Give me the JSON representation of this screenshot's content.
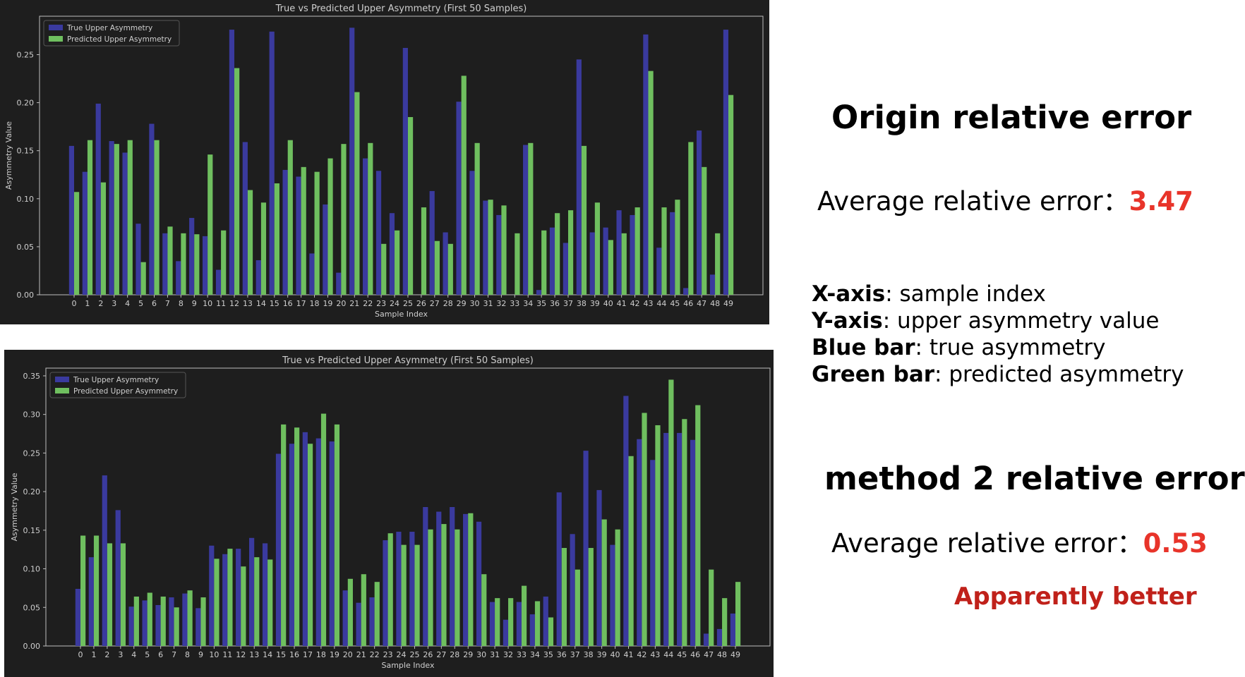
{
  "chart_data": [
    {
      "type": "bar",
      "title": "True vs Predicted Upper Asymmetry (First 50 Samples)",
      "xlabel": "Sample Index",
      "ylabel": "Asymmetry Value",
      "ylim": [
        0,
        0.29
      ],
      "yticks": [
        0,
        0.05,
        0.1,
        0.15,
        0.2,
        0.25
      ],
      "ytick_labels": [
        "0.00",
        "0.05",
        "0.10",
        "0.15",
        "0.20",
        "0.25"
      ],
      "legend_position": "top-left",
      "categories": [
        "0",
        "1",
        "2",
        "3",
        "4",
        "5",
        "6",
        "7",
        "8",
        "9",
        "10",
        "11",
        "12",
        "13",
        "14",
        "15",
        "16",
        "17",
        "18",
        "19",
        "20",
        "21",
        "22",
        "23",
        "24",
        "25",
        "26",
        "27",
        "28",
        "29",
        "30",
        "31",
        "32",
        "33",
        "34",
        "35",
        "36",
        "37",
        "38",
        "39",
        "40",
        "41",
        "42",
        "43",
        "44",
        "45",
        "46",
        "47",
        "48",
        "49"
      ],
      "series": [
        {
          "name": "True Upper Asymmetry",
          "color": "#3a3a9e",
          "values": [
            0.155,
            0.128,
            0.199,
            0.16,
            0.148,
            0.074,
            0.178,
            0.064,
            0.035,
            0.08,
            0.061,
            0.026,
            0.276,
            0.159,
            0.036,
            0.274,
            0.13,
            0.123,
            0.043,
            0.094,
            0.023,
            0.278,
            0.142,
            0.129,
            0.085,
            0.257,
            0.0,
            0.108,
            0.065,
            0.201,
            0.129,
            0.098,
            0.083,
            0.0,
            0.156,
            0.005,
            0.07,
            0.054,
            0.245,
            0.065,
            0.07,
            0.088,
            0.083,
            0.271,
            0.049,
            0.086,
            0.007,
            0.171,
            0.021,
            0.276
          ]
        },
        {
          "name": "Predicted Upper Asymmetry",
          "color": "#6fbf5f",
          "values": [
            0.107,
            0.161,
            0.117,
            0.157,
            0.161,
            0.034,
            0.161,
            0.071,
            0.064,
            0.063,
            0.146,
            0.067,
            0.236,
            0.109,
            0.096,
            0.116,
            0.161,
            0.133,
            0.128,
            0.142,
            0.157,
            0.211,
            0.158,
            0.053,
            0.067,
            0.185,
            0.091,
            0.056,
            0.053,
            0.228,
            0.158,
            0.099,
            0.093,
            0.064,
            0.158,
            0.067,
            0.085,
            0.088,
            0.155,
            0.096,
            0.057,
            0.064,
            0.091,
            0.233,
            0.091,
            0.099,
            0.159,
            0.133,
            0.064,
            0.208
          ]
        }
      ]
    },
    {
      "type": "bar",
      "title": "True vs Predicted Upper Asymmetry (First 50 Samples)",
      "xlabel": "Sample Index",
      "ylabel": "Asymmetry Value",
      "ylim": [
        0,
        0.36
      ],
      "yticks": [
        0,
        0.05,
        0.1,
        0.15,
        0.2,
        0.25,
        0.3,
        0.35
      ],
      "ytick_labels": [
        "0.00",
        "0.05",
        "0.10",
        "0.15",
        "0.20",
        "0.25",
        "0.30",
        "0.35"
      ],
      "legend_position": "top-left",
      "categories": [
        "0",
        "1",
        "2",
        "3",
        "4",
        "5",
        "6",
        "7",
        "8",
        "9",
        "10",
        "11",
        "12",
        "13",
        "14",
        "15",
        "16",
        "17",
        "18",
        "19",
        "20",
        "21",
        "22",
        "23",
        "24",
        "25",
        "26",
        "27",
        "28",
        "29",
        "30",
        "31",
        "32",
        "33",
        "34",
        "35",
        "36",
        "37",
        "38",
        "39",
        "40",
        "41",
        "42",
        "43",
        "44",
        "45",
        "46",
        "47",
        "48",
        "49"
      ],
      "series": [
        {
          "name": "True Upper Asymmetry",
          "color": "#3a3a9e",
          "values": [
            0.074,
            0.115,
            0.221,
            0.176,
            0.051,
            0.059,
            0.053,
            0.063,
            0.068,
            0.049,
            0.13,
            0.119,
            0.126,
            0.14,
            0.133,
            0.249,
            0.262,
            0.277,
            0.269,
            0.265,
            0.072,
            0.056,
            0.063,
            0.137,
            0.148,
            0.148,
            0.18,
            0.174,
            0.18,
            0.171,
            0.161,
            0.057,
            0.034,
            0.057,
            0.041,
            0.064,
            0.199,
            0.145,
            0.253,
            0.202,
            0.131,
            0.324,
            0.268,
            0.241,
            0.276,
            0.276,
            0.267,
            0.016,
            0.022,
            0.042
          ]
        },
        {
          "name": "Predicted Upper Asymmetry",
          "color": "#6fbf5f",
          "values": [
            0.143,
            0.143,
            0.133,
            0.133,
            0.064,
            0.069,
            0.064,
            0.05,
            0.072,
            0.063,
            0.113,
            0.126,
            0.103,
            0.115,
            0.112,
            0.287,
            0.283,
            0.262,
            0.301,
            0.287,
            0.087,
            0.093,
            0.083,
            0.146,
            0.131,
            0.131,
            0.151,
            0.158,
            0.151,
            0.172,
            0.093,
            0.062,
            0.062,
            0.078,
            0.058,
            0.037,
            0.127,
            0.099,
            0.127,
            0.164,
            0.151,
            0.246,
            0.302,
            0.286,
            0.345,
            0.294,
            0.312,
            0.099,
            0.062,
            0.083
          ]
        }
      ]
    }
  ],
  "side": {
    "heading1": "Origin relative error",
    "avg1_label": "Average relative error：",
    "avg1_value": "3.47",
    "desc": [
      {
        "term": "X-axis",
        "text": ": sample index"
      },
      {
        "term": "Y-axis",
        "text": ": upper asymmetry value"
      },
      {
        "term": "Blue bar",
        "text": ": true asymmetry"
      },
      {
        "term": "Green bar",
        "text": ": predicted asymmetry"
      }
    ],
    "heading2": "method 2 relative error",
    "avg2_label": "Average relative error：",
    "avg2_value": "0.53",
    "conclusion": "Apparently better"
  }
}
